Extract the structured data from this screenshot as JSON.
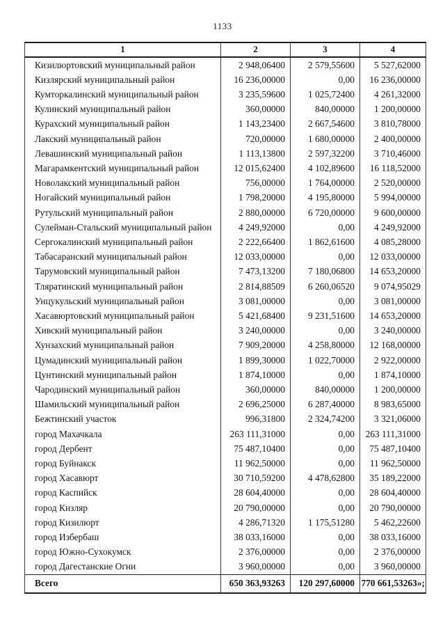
{
  "page": {
    "number": "1133"
  },
  "table": {
    "headers": [
      "1",
      "2",
      "3",
      "4"
    ],
    "rows": [
      {
        "name": "Кизилюртовский муниципальный район",
        "c2": "2 948,06400",
        "c3": "2 579,55600",
        "c4": "5 527,62000"
      },
      {
        "name": "Кизлярский муниципальный район",
        "c2": "16 236,00000",
        "c3": "0,00",
        "c4": "16 236,00000"
      },
      {
        "name": "Кумторкалинский муниципальный район",
        "c2": "3 235,59600",
        "c3": "1 025,72400",
        "c4": "4 261,32000"
      },
      {
        "name": "Кулинский муниципальный район",
        "c2": "360,00000",
        "c3": "840,00000",
        "c4": "1 200,00000"
      },
      {
        "name": "Курахский муниципальный район",
        "c2": "1 143,23400",
        "c3": "2 667,54600",
        "c4": "3 810,78000"
      },
      {
        "name": "Лакский муниципальный район",
        "c2": "720,00000",
        "c3": "1 680,00000",
        "c4": "2 400,00000"
      },
      {
        "name": "Левашинский муниципальный район",
        "c2": "1 113,13800",
        "c3": "2 597,32200",
        "c4": "3 710,46000"
      },
      {
        "name": "Магарамкентский муниципальный район",
        "c2": "12 015,62400",
        "c3": "4 102,89600",
        "c4": "16 118,52000"
      },
      {
        "name": "Новолакский муниципальный район",
        "c2": "756,00000",
        "c3": "1 764,00000",
        "c4": "2 520,00000"
      },
      {
        "name": "Ногайский муниципальный район",
        "c2": "1 798,20000",
        "c3": "4 195,80000",
        "c4": "5 994,00000"
      },
      {
        "name": "Рутульский муниципальный район",
        "c2": "2 880,00000",
        "c3": "6 720,00000",
        "c4": "9 600,00000"
      },
      {
        "name": "Сулейман-Стальский муниципальный район",
        "c2": "4 249,92000",
        "c3": "0,00",
        "c4": "4 249,92000"
      },
      {
        "name": "Сергокалинский муниципальный район",
        "c2": "2 222,66400",
        "c3": "1 862,61600",
        "c4": "4 085,28000"
      },
      {
        "name": "Табасаранский муниципальный район",
        "c2": "12 033,00000",
        "c3": "0,00",
        "c4": "12 033,00000"
      },
      {
        "name": "Тарумовский муниципальный район",
        "c2": "7 473,13200",
        "c3": "7 180,06800",
        "c4": "14 653,20000"
      },
      {
        "name": "Тляратинский муниципальный район",
        "c2": "2 814,88509",
        "c3": "6 260,06520",
        "c4": "9 074,95029"
      },
      {
        "name": "Унцукульский муниципальный район",
        "c2": "3 081,00000",
        "c3": "0,00",
        "c4": "3 081,00000"
      },
      {
        "name": "Хасавюртовский муниципальный район",
        "c2": "5 421,68400",
        "c3": "9 231,51600",
        "c4": "14 653,20000"
      },
      {
        "name": "Хивский муниципальный район",
        "c2": "3 240,00000",
        "c3": "0,00",
        "c4": "3 240,00000"
      },
      {
        "name": "Хунзахский муниципальный район",
        "c2": "7 909,20000",
        "c3": "4 258,80000",
        "c4": "12 168,00000"
      },
      {
        "name": "Цумадинский муниципальный район",
        "c2": "1 899,30000",
        "c3": "1 022,70000",
        "c4": "2 922,00000"
      },
      {
        "name": "Цунтинский муниципальный район",
        "c2": "1 874,10000",
        "c3": "0,00",
        "c4": "1 874,10000"
      },
      {
        "name": "Чародинский муниципальный район",
        "c2": "360,00000",
        "c3": "840,00000",
        "c4": "1 200,00000"
      },
      {
        "name": "Шамильский муниципальный район",
        "c2": "2 696,25000",
        "c3": "6 287,40000",
        "c4": "8 983,65000"
      },
      {
        "name": "Бежтинский участок",
        "c2": "996,31800",
        "c3": "2 324,74200",
        "c4": "3 321,06000"
      },
      {
        "name": "город Махачкала",
        "c2": "263 111,31000",
        "c3": "0,00",
        "c4": "263 111,31000"
      },
      {
        "name": "город Дербент",
        "c2": "75 487,10400",
        "c3": "0,00",
        "c4": "75 487,10400"
      },
      {
        "name": "город Буйнакск",
        "c2": "11 962,50000",
        "c3": "0,00",
        "c4": "11 962,50000"
      },
      {
        "name": "город Хасавюрт",
        "c2": "30 710,59200",
        "c3": "4 478,62800",
        "c4": "35 189,22000"
      },
      {
        "name": "город Каспийск",
        "c2": "28 604,40000",
        "c3": "0,00",
        "c4": "28 604,40000"
      },
      {
        "name": "город Кизляр",
        "c2": "20 790,00000",
        "c3": "0,00",
        "c4": "20 790,00000"
      },
      {
        "name": "город Кизилюрт",
        "c2": "4 286,71320",
        "c3": "1 175,51280",
        "c4": "5 462,22600"
      },
      {
        "name": "город Избербаш",
        "c2": "38 033,16000",
        "c3": "0,00",
        "c4": "38 033,16000"
      },
      {
        "name": "город Южно-Сухокумск",
        "c2": "2 376,00000",
        "c3": "0,00",
        "c4": "2 376,00000"
      },
      {
        "name": "город Дагестанские Огни",
        "c2": "3 960,00000",
        "c3": "0,00",
        "c4": "3 960,00000"
      }
    ],
    "total": {
      "name": "Всего",
      "c2": "650 363,93263",
      "c3": "120 297,60000",
      "c4": "770 661,53263»;"
    }
  }
}
